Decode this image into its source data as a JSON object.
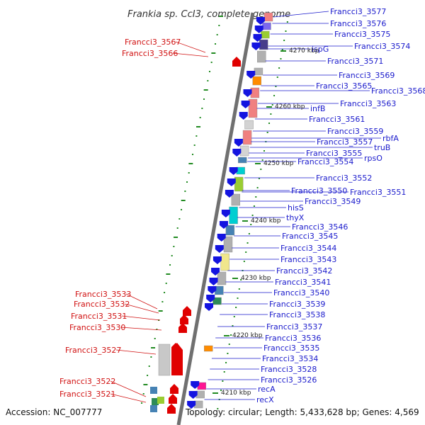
{
  "title": "Frankia sp. CcI3, complete genome",
  "footer": {
    "accession": "Accession: NC_007777",
    "topology": "Topology: circular; Length: 5,433,628 bp; Genes: 4,569"
  },
  "colors": {
    "forward_label": "#1a1acc",
    "reverse_label": "#d01010",
    "forward_arrow": "#1414e0",
    "reverse_arrow": "#e00000",
    "scale_tick": "#228b22"
  },
  "scale": {
    "kbp_labels": [
      "4270 kbp",
      "4260 kbp",
      "4250 kbp",
      "4240 kbp",
      "4230 kbp",
      "4220 kbp",
      "4210 kbp"
    ]
  },
  "forward_genes": [
    "Francci3_3577",
    "Francci3_3576",
    "Francci3_3575",
    "Francci3_3574",
    "ispG",
    "Francci3_3571",
    "Francci3_3569",
    "Francci3_3565",
    "Francci3_3568",
    "Francci3_3563",
    "infB",
    "Francci3_3561",
    "Francci3_3559",
    "rbfA",
    "Francci3_3557",
    "truB",
    "Francci3_3555",
    "rpsO",
    "Francci3_3554",
    "Francci3_3552",
    "Francci3_3550",
    "Francci3_3551",
    "Francci3_3549",
    "hisS",
    "thyX",
    "Francci3_3546",
    "Francci3_3545",
    "Francci3_3544",
    "Francci3_3543",
    "Francci3_3542",
    "Francci3_3541",
    "Francci3_3540",
    "Francci3_3539",
    "Francci3_3538",
    "Francci3_3537",
    "Francci3_3536",
    "Francci3_3535",
    "Francci3_3534",
    "Francci3_3528",
    "Francci3_3526",
    "recA",
    "recX"
  ],
  "reverse_genes": [
    "Francci3_3567",
    "Francci3_3566",
    "Francci3_3533",
    "Francci3_3532",
    "Francci3_3531",
    "Francci3_3530",
    "Francci3_3527",
    "Francci3_3522",
    "Francci3_3521"
  ]
}
